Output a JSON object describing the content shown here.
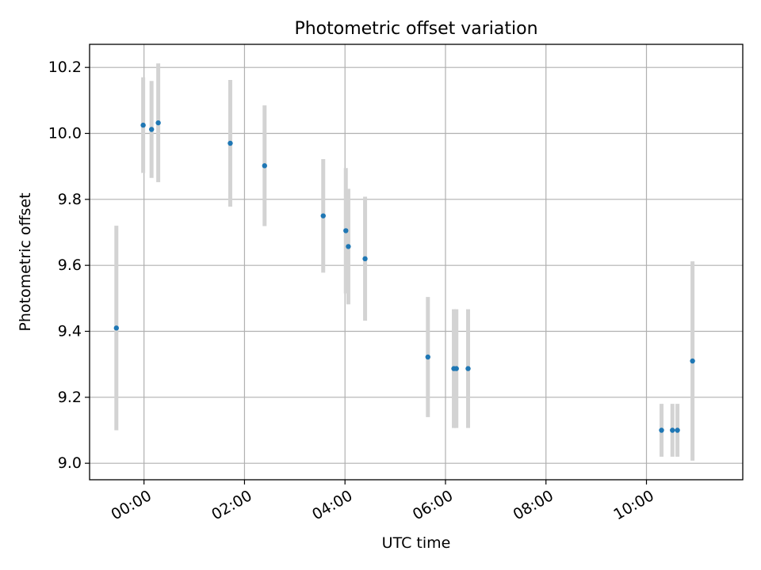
{
  "chart_data": {
    "type": "scatter",
    "title": "Photometric offset variation",
    "xlabel": "UTC time",
    "ylabel": "Photometric offset",
    "x_axis_type": "time",
    "xlim": [
      "-01:05",
      "11:55"
    ],
    "ylim": [
      8.95,
      10.27
    ],
    "x_tick_labels": [
      "00:00",
      "02:00",
      "04:00",
      "06:00",
      "08:00",
      "10:00"
    ],
    "y_tick_labels": [
      "9.0",
      "9.2",
      "9.4",
      "9.6",
      "9.8",
      "10.0",
      "10.2"
    ],
    "grid": true,
    "legend": "none",
    "marker_color": "#1f77b4",
    "errorbar_color": "#d3d3d3",
    "series": [
      {
        "points": [
          {
            "x": "-00:33",
            "y": 9.41,
            "err": 0.31
          },
          {
            "x": "-00:01",
            "y": 10.025,
            "err": 0.145
          },
          {
            "x": "00:09",
            "y": 10.012,
            "err": 0.147
          },
          {
            "x": "00:17",
            "y": 10.032,
            "err": 0.18
          },
          {
            "x": "01:43",
            "y": 9.97,
            "err": 0.192
          },
          {
            "x": "02:24",
            "y": 9.902,
            "err": 0.183
          },
          {
            "x": "03:34",
            "y": 9.75,
            "err": 0.172
          },
          {
            "x": "04:01",
            "y": 9.705,
            "err": 0.19
          },
          {
            "x": "04:04",
            "y": 9.657,
            "err": 0.175
          },
          {
            "x": "04:24",
            "y": 9.62,
            "err": 0.188
          },
          {
            "x": "05:39",
            "y": 9.322,
            "err": 0.182
          },
          {
            "x": "06:10",
            "y": 9.287,
            "err": 0.18
          },
          {
            "x": "06:13",
            "y": 9.287,
            "err": 0.18
          },
          {
            "x": "06:27",
            "y": 9.287,
            "err": 0.18
          },
          {
            "x": "10:18",
            "y": 9.1,
            "err": 0.08
          },
          {
            "x": "10:31",
            "y": 9.1,
            "err": 0.08
          },
          {
            "x": "10:37",
            "y": 9.1,
            "err": 0.08
          },
          {
            "x": "10:55",
            "y": 9.31,
            "err": 0.302
          }
        ]
      }
    ]
  }
}
